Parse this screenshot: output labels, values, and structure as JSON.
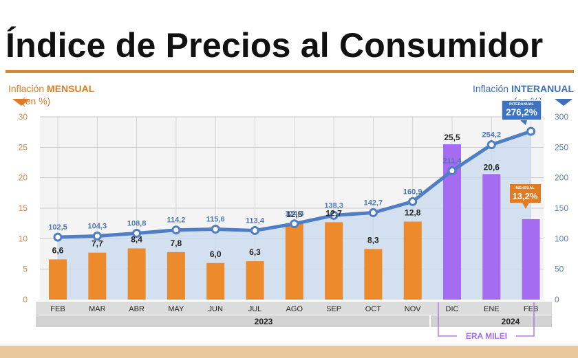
{
  "title": "Índice de Precios al Consumidor",
  "left_axis": {
    "label_prefix": "Inflación ",
    "label_bold": "MENSUAL",
    "unit": "(en %)"
  },
  "right_axis": {
    "label_prefix": "Inflación ",
    "label_bold": "INTERANUAL",
    "unit": "(en %)"
  },
  "chart_data": {
    "type": "bar+line",
    "categories": [
      "FEB",
      "MAR",
      "ABR",
      "MAY",
      "JUN",
      "JUL",
      "AGO",
      "SEP",
      "OCT",
      "NOV",
      "DIC",
      "ENE",
      "FEB"
    ],
    "series": [
      {
        "name": "Inflación MENSUAL",
        "axis": "left",
        "values": [
          6.6,
          7.7,
          8.4,
          7.8,
          6.0,
          6.3,
          12.5,
          12.7,
          8.3,
          12.8,
          25.5,
          20.6,
          13.2
        ],
        "labels": [
          "6,6",
          "7,7",
          "8,4",
          "7,8",
          "6,0",
          "6,3",
          "12,5",
          "12,7",
          "8,3",
          "12,8",
          "25,5",
          "20,6",
          "13,2%"
        ]
      },
      {
        "name": "Inflación INTERANUAL",
        "axis": "right",
        "values": [
          102.5,
          104.3,
          108.8,
          114.2,
          115.6,
          113.4,
          124.4,
          138.3,
          142.7,
          160.9,
          211.4,
          254.2,
          276.2
        ],
        "labels": [
          "102,5",
          "104,3",
          "108,8",
          "114,2",
          "115,6",
          "113,4",
          "124,4",
          "138,3",
          "142,7",
          "160,9",
          "211,4",
          "254,2",
          "276,2%"
        ]
      }
    ],
    "ylim_left": [
      0,
      30
    ],
    "ylim_right": [
      0,
      300
    ],
    "yticks_left": [
      0,
      5,
      10,
      15,
      20,
      25,
      30
    ],
    "yticks_right": [
      0,
      50,
      100,
      150,
      200,
      250,
      300
    ],
    "years": [
      {
        "label": "2023"
      },
      {
        "label": "2024"
      }
    ],
    "era_label": "ERA MILEI",
    "callouts": {
      "interanual_tag": "INTERANUAL",
      "mensual_tag": "MENSUAL"
    },
    "colors": {
      "orange": "#ec8a2c",
      "purple": "#a56cf2",
      "line": "#4f7ec4",
      "area": "#c7d9ee",
      "grid": "#c9c9c9",
      "band": "#dcdcdc"
    }
  }
}
